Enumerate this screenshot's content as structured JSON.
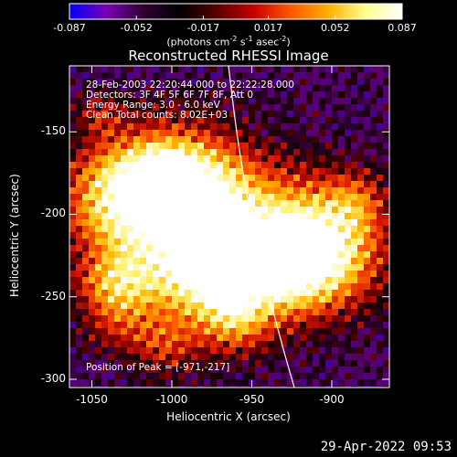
{
  "colorbar": {
    "tick_labels": [
      "-0.087",
      "-0.052",
      "-0.017",
      "0.017",
      "0.052",
      "0.087"
    ],
    "tick_values": [
      -0.087,
      -0.052,
      -0.017,
      0.017,
      0.052,
      0.087
    ],
    "unit_parts": [
      "(photons cm",
      "-2",
      " s",
      "-1",
      " asec",
      "-2",
      ")"
    ],
    "colors": [
      "#0000ff",
      "#7a00b4",
      "#300030",
      "#000000",
      "#5a0000",
      "#c80000",
      "#ff5a00",
      "#ffb000",
      "#ffff90",
      "#ffffff"
    ]
  },
  "title": "Reconstructed RHESSI Image",
  "info": {
    "line1": "28-Feb-2003 22:20:44.000 to 22:22:28.000",
    "line2": "Detectors: 3F 4F 5F 6F 7F 8F, Att 0",
    "line3": "Energy Range: 3.0 - 6.0 keV",
    "line4": "Clean     Total counts: 8.02E+03"
  },
  "peak_label": "Position of Peak = [-971,-217]",
  "axes": {
    "xlabel": "Heliocentric X (arcsec)",
    "ylabel": "Heliocentric Y (arcsec)",
    "x_ticks": [
      "-1050",
      "-1000",
      "-950",
      "-900"
    ],
    "x_tick_values": [
      -1050,
      -1000,
      -950,
      -900
    ],
    "y_ticks": [
      "-150",
      "-200",
      "-250",
      "-300"
    ],
    "y_tick_values": [
      -150,
      -200,
      -250,
      -300
    ],
    "x_range": [
      -1064,
      -864
    ],
    "y_range": [
      -305,
      -110
    ]
  },
  "footer_date": "29-Apr-2022 09:53",
  "colors": {
    "background": "#000000",
    "foreground": "#ffffff",
    "limb_line": "#ffffff"
  }
}
